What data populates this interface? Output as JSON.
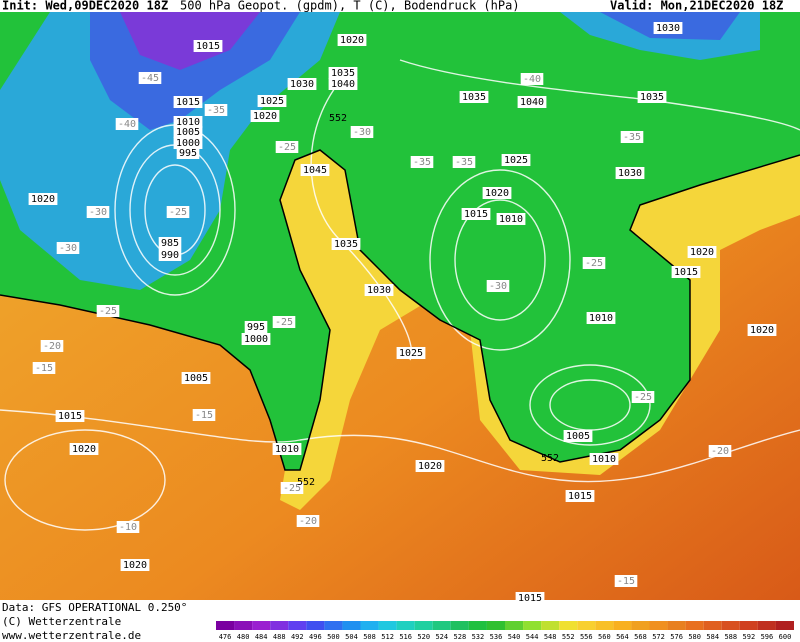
{
  "header": {
    "init": "Init: Wed,09DEC2020 18Z",
    "title": "500 hPa Geopot. (gpdm), T (C), Bodendruck (hPa)",
    "valid": "Valid: Mon,21DEC2020 18Z"
  },
  "map": {
    "pressure_labels": [
      "1015",
      "1020",
      "1030",
      "1035",
      "1040",
      "1030",
      "1025",
      "1020",
      "1015",
      "1010",
      "1005",
      "1000",
      "995",
      "1045",
      "1035",
      "1040",
      "1035",
      "1025",
      "1030",
      "1020",
      "1015",
      "1010",
      "1035",
      "1030",
      "1020",
      "985",
      "990",
      "995",
      "1000",
      "1005",
      "1015",
      "1025",
      "1010",
      "1020",
      "1015",
      "1020",
      "1010",
      "1020",
      "1005",
      "1010",
      "1015",
      "1020",
      "1020",
      "1015"
    ],
    "temperature_labels": [
      "-45",
      "-40",
      "-35",
      "-30",
      "-30",
      "-25",
      "-25",
      "-25",
      "-20",
      "-15",
      "-15",
      "-25",
      "-30",
      "-35",
      "-35",
      "-40",
      "-35",
      "-25",
      "-30",
      "-25",
      "-20",
      "-20",
      "-25",
      "-10",
      "-15"
    ],
    "height_labels": [
      "552",
      "552",
      "552"
    ]
  },
  "footer": {
    "data": "Data: GFS OPERATIONAL 0.250°",
    "copyright": "(C) Wetterzentrale",
    "url": "www.wetterzentrale.de"
  },
  "colorbar": {
    "labels": [
      "476",
      "480",
      "484",
      "488",
      "492",
      "496",
      "500",
      "504",
      "508",
      "512",
      "516",
      "520",
      "524",
      "528",
      "532",
      "536",
      "540",
      "544",
      "548",
      "552",
      "556",
      "560",
      "564",
      "568",
      "572",
      "576",
      "580",
      "584",
      "588",
      "592",
      "596",
      "600"
    ]
  }
}
